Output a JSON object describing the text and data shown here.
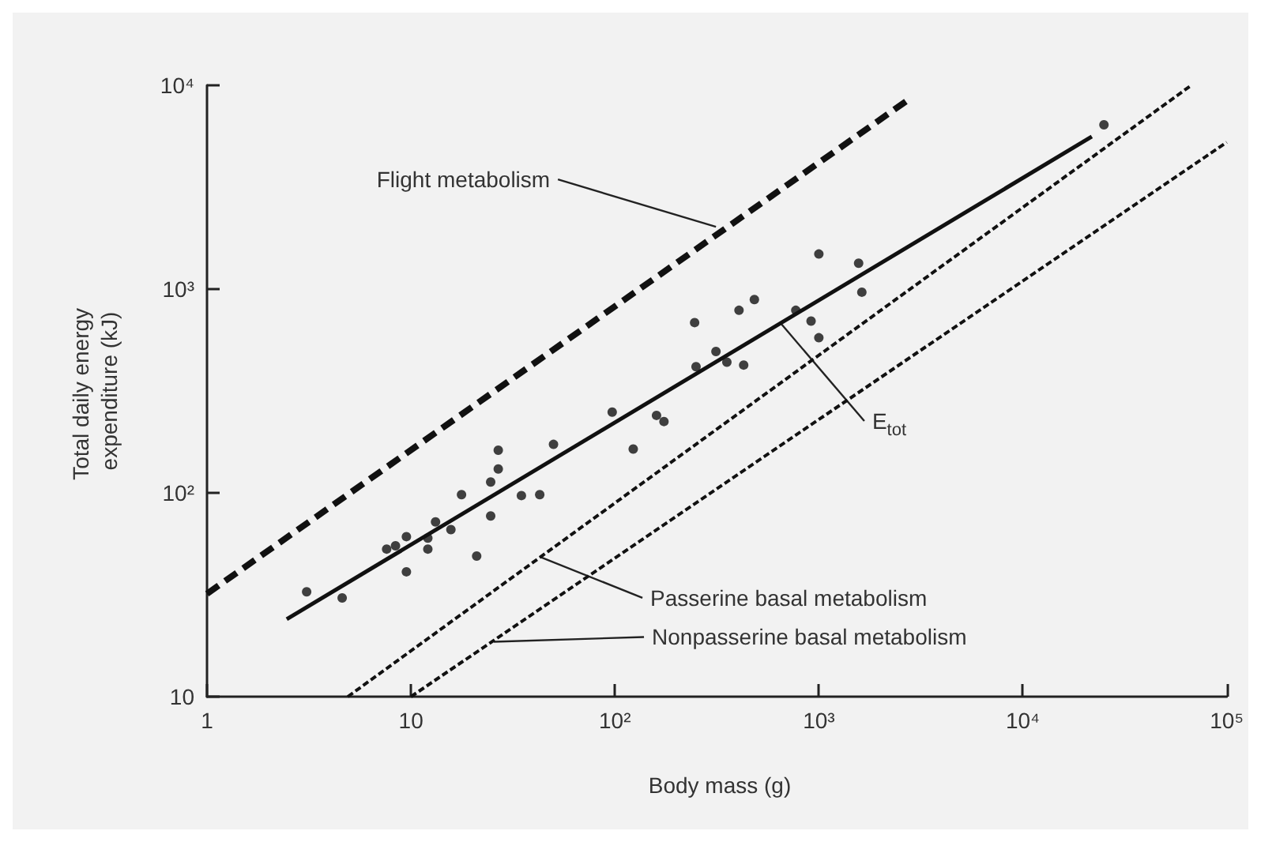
{
  "chart_data": {
    "type": "scatter",
    "xlabel": "Body mass (g)",
    "ylabel": "Total daily energy expenditure (kJ)",
    "log": "xy",
    "grid": false,
    "xlim": [
      1,
      100000
    ],
    "ylim": [
      10,
      10000
    ],
    "xticks": [
      1,
      10,
      {
        "value": 100,
        "label": "10²"
      },
      {
        "value": 1000,
        "label": "10³"
      },
      {
        "value": 10000,
        "label": "10⁴"
      },
      {
        "value": 100000,
        "label": "10⁵"
      }
    ],
    "yticks": [
      10,
      {
        "value": 100,
        "label": "10²"
      },
      {
        "value": 1000,
        "label": "10³"
      },
      {
        "value": 10000,
        "label": "10⁴"
      }
    ],
    "series": [
      {
        "marker": "circle",
        "color": "#111111",
        "x": [
          3.08,
          4.6,
          7.6,
          8.4,
          9.5,
          9.5,
          12.1,
          12.1,
          13.2,
          15.7,
          17.7,
          21,
          24.6,
          24.6,
          26.8,
          26.8,
          34.8,
          42.8,
          50,
          97,
          123,
          160,
          174,
          246,
          250,
          313,
          354,
          428,
          406,
          483,
          771,
          916,
          1000,
          1000,
          1567,
          1625,
          25000
        ],
        "values": [
          32.7,
          30.5,
          53,
          55,
          61,
          41,
          53,
          60,
          72,
          66,
          98,
          49,
          77,
          113,
          131,
          162,
          97,
          98,
          173,
          249,
          164,
          240,
          224,
          685,
          416,
          494,
          438,
          424,
          787,
          888,
          787,
          697,
          577,
          1486,
          1340,
          966,
          6400
        ]
      },
      {
        "type": "line",
        "color": "#111111",
        "line_style": "solid",
        "x": [
          2.46,
          21800
        ],
        "values": [
          24,
          5600
        ]
      },
      {
        "type": "line",
        "color": "#111111",
        "line_style": "dashed",
        "x": [
          1,
          2700
        ],
        "values": [
          32,
          8400
        ]
      },
      {
        "type": "line",
        "color": "#111111",
        "line_style": "dotted",
        "x": [
          4.9,
          67000
        ],
        "values": [
          10,
          10000
        ]
      },
      {
        "type": "line",
        "color": "#111111",
        "line_style": "dotted",
        "x": [
          10,
          100000
        ],
        "values": [
          10,
          5250
        ]
      }
    ],
    "annotations": [
      {
        "text": "Flight metabolism",
        "x": 313,
        "y": 2020
      },
      {
        "text": "E$_{tot}$",
        "x": 649,
        "y": 681
      },
      {
        "text": "Passerine basal metabolism",
        "x": 42.8,
        "y": 48.6
      },
      {
        "text": "Nonpasserine basal metabolism",
        "x": 25.5,
        "y": 18.6
      }
    ]
  }
}
